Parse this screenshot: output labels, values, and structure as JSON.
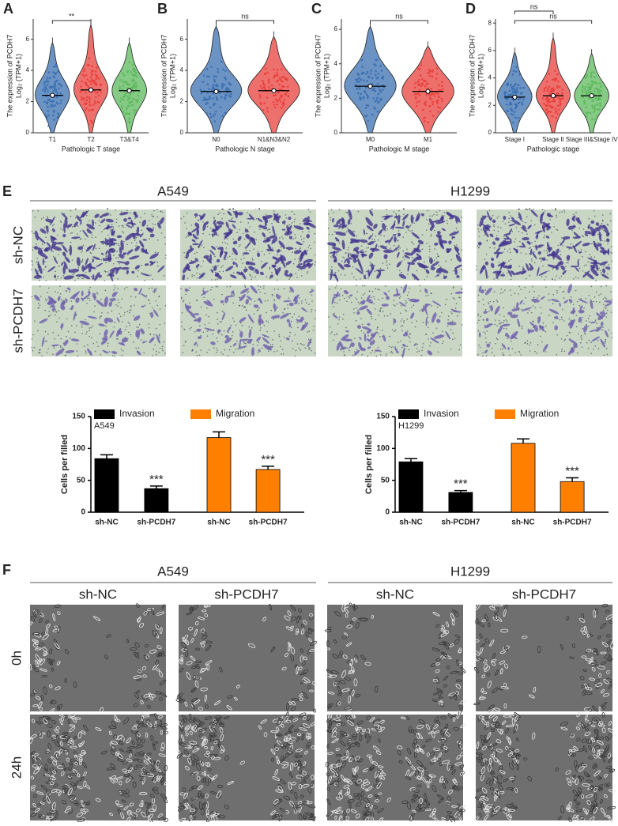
{
  "figure": {
    "panel_letters": [
      "A",
      "B",
      "C",
      "D",
      "E",
      "F"
    ],
    "E": {
      "cell_lines": [
        "A549",
        "H1299"
      ],
      "assays": [
        "Invasion",
        "Migration",
        "Invasion",
        "Migration"
      ],
      "rows": [
        "sh-NC",
        "sh-PCDH7"
      ]
    },
    "F": {
      "cell_lines": [
        "A549",
        "H1299"
      ],
      "columns": [
        "sh-NC",
        "sh-PCDH7",
        "sh-NC",
        "sh-PCDH7"
      ],
      "rows": [
        "0h",
        "24h"
      ]
    }
  },
  "chart_data": [
    {
      "type": "violin",
      "ylabel": [
        "The expression of PCDH7",
        "Log₂ (TPM+1)"
      ],
      "xlabel": "Pathologic T stage",
      "categories": [
        "T1",
        "T2",
        "T3&T4"
      ],
      "colors": [
        "#3a6fb0",
        "#e8403c",
        "#5cb85c"
      ],
      "medians": [
        2.4,
        2.75,
        2.7
      ],
      "maxima": [
        6.1,
        7.3,
        6.1
      ],
      "ylim": [
        0,
        7.3
      ],
      "yticks": [
        0,
        2,
        4,
        6
      ],
      "annotations": [
        {
          "label": "**",
          "from": "T1",
          "to": "T2"
        }
      ]
    },
    {
      "type": "violin",
      "ylabel": [
        "The expression of PCDH7",
        "Log₂ (TPM+1)"
      ],
      "xlabel": "Pathologic N stage",
      "categories": [
        "N0",
        "N1&N3&N2"
      ],
      "colors": [
        "#3a6fb0",
        "#e8403c"
      ],
      "medians": [
        2.65,
        2.7
      ],
      "maxima": [
        7.2,
        6.5
      ],
      "ylim": [
        0,
        7.3
      ],
      "yticks": [
        0,
        2,
        4,
        6
      ],
      "annotations": [
        {
          "label": "ns",
          "from": "N0",
          "to": "N1&N3&N2"
        }
      ]
    },
    {
      "type": "violin",
      "ylabel": [
        "The expression of PCDH7",
        "Log₂ (TPM+1)"
      ],
      "xlabel": "Pathologic M stage",
      "categories": [
        "M0",
        "M1"
      ],
      "colors": [
        "#3a6fb0",
        "#e8403c"
      ],
      "medians": [
        2.7,
        2.4
      ],
      "maxima": [
        6.5,
        5.3
      ],
      "ylim": [
        0,
        6.6
      ],
      "yticks": [
        0,
        2,
        4,
        6
      ],
      "annotations": [
        {
          "label": "ns",
          "from": "M0",
          "to": "M1"
        }
      ]
    },
    {
      "type": "violin",
      "ylabel": [
        "The expression of PCDH7",
        "Log₂ (TPM+1)"
      ],
      "xlabel": "Pathologic stage",
      "categories": [
        "Stage I",
        "Stage II",
        "Stage III&Stage IV"
      ],
      "colors": [
        "#3a6fb0",
        "#e8403c",
        "#5cb85c"
      ],
      "medians": [
        2.6,
        2.7,
        2.7
      ],
      "maxima": [
        6.2,
        7.3,
        6.1
      ],
      "ylim": [
        0,
        8.3
      ],
      "yticks": [
        0,
        2,
        4,
        6,
        8
      ],
      "annotations": [
        {
          "label": "ns",
          "from": "Stage I",
          "to": "Stage II"
        },
        {
          "label": "ns",
          "from": "Stage I",
          "to": "Stage III&Stage IV"
        }
      ]
    },
    {
      "type": "bar",
      "title": "A549",
      "ylabel": "Cells per filled",
      "categories": [
        "sh-NC",
        "sh-PCDH7"
      ],
      "ylim": [
        0,
        150
      ],
      "yticks": [
        0,
        50,
        100,
        150
      ],
      "series": [
        {
          "name": "Invasion",
          "color": "#000000",
          "values": [
            84,
            37
          ],
          "errors": [
            6,
            4
          ],
          "significance": [
            null,
            "***"
          ]
        },
        {
          "name": "Migration",
          "color": "#ff8000",
          "values": [
            117,
            67
          ],
          "errors": [
            9,
            5
          ],
          "significance": [
            null,
            "***"
          ]
        }
      ]
    },
    {
      "type": "bar",
      "title": "H1299",
      "ylabel": "Cells per filled",
      "categories": [
        "sh-NC",
        "sh-PCDH7"
      ],
      "ylim": [
        0,
        150
      ],
      "yticks": [
        0,
        50,
        100,
        150
      ],
      "series": [
        {
          "name": "Invasion",
          "color": "#000000",
          "values": [
            79,
            31
          ],
          "errors": [
            5,
            3
          ],
          "significance": [
            null,
            "***"
          ]
        },
        {
          "name": "Migration",
          "color": "#ff8000",
          "values": [
            108,
            48
          ],
          "errors": [
            7,
            6
          ],
          "significance": [
            null,
            "***"
          ]
        }
      ]
    }
  ]
}
